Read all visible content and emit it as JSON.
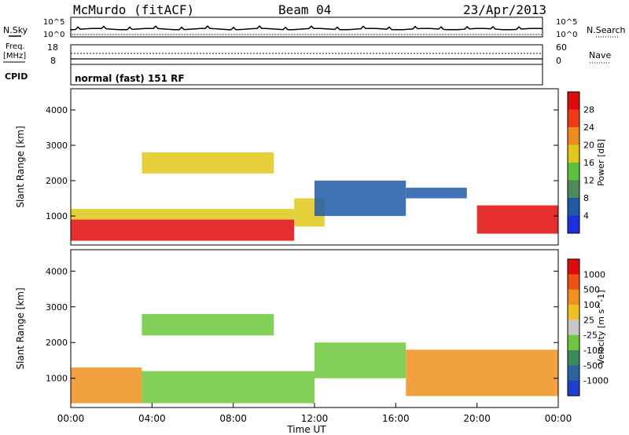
{
  "header": {
    "station": "McMurdo (fitACF)",
    "beam": "Beam 04",
    "date": "23/Apr/2013"
  },
  "strip_panels": {
    "nsky_label": "N.Sky",
    "nsearch_label": "N.Search",
    "noise_left_ticks": [
      "10^5",
      "10^0"
    ],
    "noise_right_ticks": [
      "10^5",
      "10^0"
    ],
    "freq_label": "Freq.",
    "freq_unit": "[MHz]",
    "freq_ticks": [
      "18",
      "8"
    ],
    "nave_label": "Nave",
    "nave_ticks": [
      "60",
      "0"
    ],
    "cpid_label": "CPID",
    "cpid_value": "normal (fast) 151 RF"
  },
  "chart_data": [
    {
      "type": "heatmap",
      "title": "",
      "xlabel": "Time UT",
      "ylabel": "Slant Range [km]",
      "x_ticks": [
        "00:00",
        "04:00",
        "08:00",
        "12:00",
        "16:00",
        "20:00",
        "00:00"
      ],
      "x_range_hours": [
        0,
        24
      ],
      "y_ticks": [
        1000,
        2000,
        3000,
        4000
      ],
      "ylim": [
        180,
        4600
      ],
      "colorbar": {
        "label": "Power [dB]",
        "ticks": [
          "4",
          "8",
          "12",
          "16",
          "20",
          "24",
          "28"
        ],
        "colors": [
          "#1a2fe0",
          "#1f5aa8",
          "#4e8a5a",
          "#5cc23a",
          "#e0c81a",
          "#f08a1a",
          "#f03a14",
          "#e00a0a"
        ]
      },
      "echo_regions": [
        {
          "start_h": 0,
          "end_h": 11,
          "min_km": 300,
          "max_km": 900,
          "level": "high"
        },
        {
          "start_h": 0,
          "end_h": 11,
          "min_km": 900,
          "max_km": 1200,
          "level": "medium"
        },
        {
          "start_h": 11,
          "end_h": 12.5,
          "min_km": 700,
          "max_km": 1500,
          "level": "medium"
        },
        {
          "start_h": 12,
          "end_h": 16.5,
          "min_km": 1000,
          "max_km": 2000,
          "level": "low"
        },
        {
          "start_h": 16.5,
          "end_h": 19.5,
          "min_km": 1500,
          "max_km": 1800,
          "level": "low"
        },
        {
          "start_h": 20,
          "end_h": 24,
          "min_km": 500,
          "max_km": 1300,
          "level": "high"
        },
        {
          "start_h": 3.5,
          "end_h": 10,
          "min_km": 2200,
          "max_km": 2800,
          "level": "medium"
        }
      ]
    },
    {
      "type": "heatmap",
      "title": "",
      "xlabel": "Time UT",
      "ylabel": "Slant Range [km]",
      "x_ticks": [
        "00:00",
        "04:00",
        "08:00",
        "12:00",
        "16:00",
        "20:00",
        "00:00"
      ],
      "x_range_hours": [
        0,
        24
      ],
      "y_ticks": [
        1000,
        2000,
        3000,
        4000
      ],
      "ylim": [
        180,
        4600
      ],
      "colorbar": {
        "label": "Velocity [m s^-1]",
        "ticks": [
          "1000",
          "500",
          "100",
          "25",
          "-25",
          "-100",
          "-500",
          "-1000"
        ],
        "colors": [
          "#1f3fd0",
          "#2a64a0",
          "#3a8a5a",
          "#6cc83a",
          "#c8c8c8",
          "#f0c020",
          "#f09020",
          "#f05010",
          "#e00a0a"
        ]
      },
      "echo_regions": [
        {
          "start_h": 0,
          "end_h": 3.5,
          "min_km": 300,
          "max_km": 1300,
          "level": "orange"
        },
        {
          "start_h": 3.5,
          "end_h": 12,
          "min_km": 300,
          "max_km": 1200,
          "level": "green"
        },
        {
          "start_h": 12,
          "end_h": 16.5,
          "min_km": 1000,
          "max_km": 2000,
          "level": "green"
        },
        {
          "start_h": 16.5,
          "end_h": 24,
          "min_km": 500,
          "max_km": 1800,
          "level": "orange"
        },
        {
          "start_h": 3.5,
          "end_h": 10,
          "min_km": 2200,
          "max_km": 2800,
          "level": "green"
        }
      ]
    }
  ]
}
